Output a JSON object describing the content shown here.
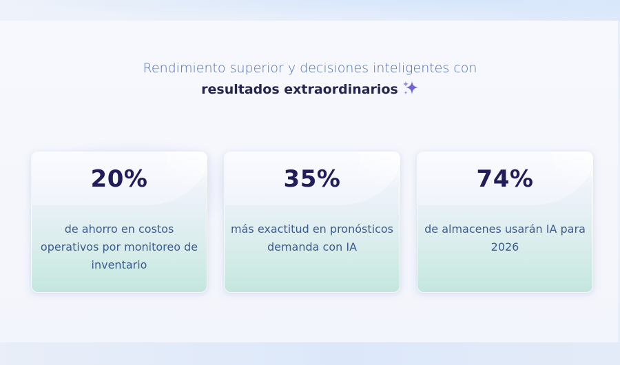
{
  "header": {
    "line1": "Rendimiento superior y decisiones inteligentes con",
    "line2": "resultados extraordinarios",
    "sparkle_icon": "sparkle-icon"
  },
  "stats": [
    {
      "value": "20%",
      "description": "de ahorro en costos operativos por monitoreo de inventario"
    },
    {
      "value": "35%",
      "description": "más exactitud en pronósticos demanda con IA"
    },
    {
      "value": "74%",
      "description": "de almacenes usarán IA para 2026"
    }
  ],
  "colors": {
    "headline": "#4e70b0",
    "headline_strong": "#242650",
    "stat_value": "#231c5a",
    "stat_desc": "#3b5c93",
    "sparkle": "#6a64d8"
  }
}
